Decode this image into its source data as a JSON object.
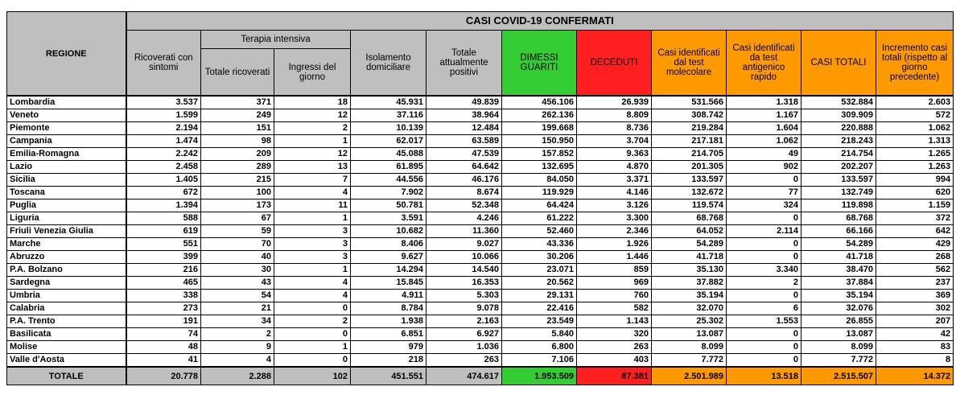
{
  "title": "CASI COVID-19 CONFERMATI",
  "headers": {
    "region": "REGIONE",
    "ricoverati": "Ricoverati con sintomi",
    "terapia_group": "Terapia intensiva",
    "totale_ricoverati": "Totale ricoverati",
    "ingressi": "Ingressi del giorno",
    "isolamento": "Isolamento domiciliare",
    "positivi": "Totale attualmente positivi",
    "dimessi": "DIMESSI GUARITI",
    "deceduti": "DECEDUTI",
    "test_molecolare": "Casi identificati dal test molecolare",
    "test_antigenico": "Casi identificati da test antigenico rapido",
    "casi_totali": "CASI TOTALI",
    "incremento": "Incremento casi totali (rispetto al giorno precedente)"
  },
  "colors": {
    "header_grey": "#bfbfbf",
    "green": "#33cc33",
    "red": "#ff1f1f",
    "orange": "#ff9900"
  },
  "rows": [
    [
      "Lombardia",
      "3.537",
      "371",
      "18",
      "45.931",
      "49.839",
      "456.106",
      "26.939",
      "531.566",
      "1.318",
      "532.884",
      "2.603"
    ],
    [
      "Veneto",
      "1.599",
      "249",
      "12",
      "37.116",
      "38.964",
      "262.136",
      "8.809",
      "308.742",
      "1.167",
      "309.909",
      "572"
    ],
    [
      "Piemonte",
      "2.194",
      "151",
      "2",
      "10.139",
      "12.484",
      "199.668",
      "8.736",
      "219.284",
      "1.604",
      "220.888",
      "1.062"
    ],
    [
      "Campania",
      "1.474",
      "98",
      "1",
      "62.017",
      "63.589",
      "150.950",
      "3.704",
      "217.181",
      "1.062",
      "218.243",
      "1.313"
    ],
    [
      "Emilia-Romagna",
      "2.242",
      "209",
      "12",
      "45.088",
      "47.539",
      "157.852",
      "9.363",
      "214.705",
      "49",
      "214.754",
      "1.265"
    ],
    [
      "Lazio",
      "2.458",
      "289",
      "13",
      "61.895",
      "64.642",
      "132.695",
      "4.870",
      "201.305",
      "902",
      "202.207",
      "1.263"
    ],
    [
      "Sicilia",
      "1.405",
      "215",
      "7",
      "44.556",
      "46.176",
      "84.050",
      "3.371",
      "133.597",
      "0",
      "133.597",
      "994"
    ],
    [
      "Toscana",
      "672",
      "100",
      "4",
      "7.902",
      "8.674",
      "119.929",
      "4.146",
      "132.672",
      "77",
      "132.749",
      "620"
    ],
    [
      "Puglia",
      "1.394",
      "173",
      "11",
      "50.781",
      "52.348",
      "64.424",
      "3.126",
      "119.574",
      "324",
      "119.898",
      "1.159"
    ],
    [
      "Liguria",
      "588",
      "67",
      "1",
      "3.591",
      "4.246",
      "61.222",
      "3.300",
      "68.768",
      "0",
      "68.768",
      "372"
    ],
    [
      "Friuli Venezia Giulia",
      "619",
      "59",
      "3",
      "10.682",
      "11.360",
      "52.460",
      "2.346",
      "64.052",
      "2.114",
      "66.166",
      "642"
    ],
    [
      "Marche",
      "551",
      "70",
      "3",
      "8.406",
      "9.027",
      "43.336",
      "1.926",
      "54.289",
      "0",
      "54.289",
      "429"
    ],
    [
      "Abruzzo",
      "399",
      "40",
      "3",
      "9.627",
      "10.066",
      "30.206",
      "1.446",
      "41.718",
      "0",
      "41.718",
      "268"
    ],
    [
      "P.A. Bolzano",
      "216",
      "30",
      "1",
      "14.294",
      "14.540",
      "23.071",
      "859",
      "35.130",
      "3.340",
      "38.470",
      "562"
    ],
    [
      "Sardegna",
      "465",
      "43",
      "4",
      "15.845",
      "16.353",
      "20.562",
      "969",
      "37.882",
      "2",
      "37.884",
      "237"
    ],
    [
      "Umbria",
      "338",
      "54",
      "4",
      "4.911",
      "5.303",
      "29.131",
      "760",
      "35.194",
      "0",
      "35.194",
      "369"
    ],
    [
      "Calabria",
      "273",
      "21",
      "0",
      "8.784",
      "9.078",
      "22.416",
      "582",
      "32.070",
      "6",
      "32.076",
      "302"
    ],
    [
      "P.A. Trento",
      "191",
      "34",
      "2",
      "1.938",
      "2.163",
      "23.549",
      "1.143",
      "25.302",
      "1.553",
      "26.855",
      "207"
    ],
    [
      "Basilicata",
      "74",
      "2",
      "0",
      "6.851",
      "6.927",
      "5.840",
      "320",
      "13.087",
      "0",
      "13.087",
      "42"
    ],
    [
      "Molise",
      "48",
      "9",
      "1",
      "979",
      "1.036",
      "6.800",
      "263",
      "8.099",
      "0",
      "8.099",
      "83"
    ],
    [
      "Valle d'Aosta",
      "41",
      "4",
      "0",
      "218",
      "263",
      "7.106",
      "403",
      "7.772",
      "0",
      "7.772",
      "8"
    ]
  ],
  "totals": {
    "label": "TOTALE",
    "values": [
      "20.778",
      "2.288",
      "102",
      "451.551",
      "474.617",
      "1.953.509",
      "87.381",
      "2.501.989",
      "13.518",
      "2.515.507",
      "14.372"
    ]
  }
}
